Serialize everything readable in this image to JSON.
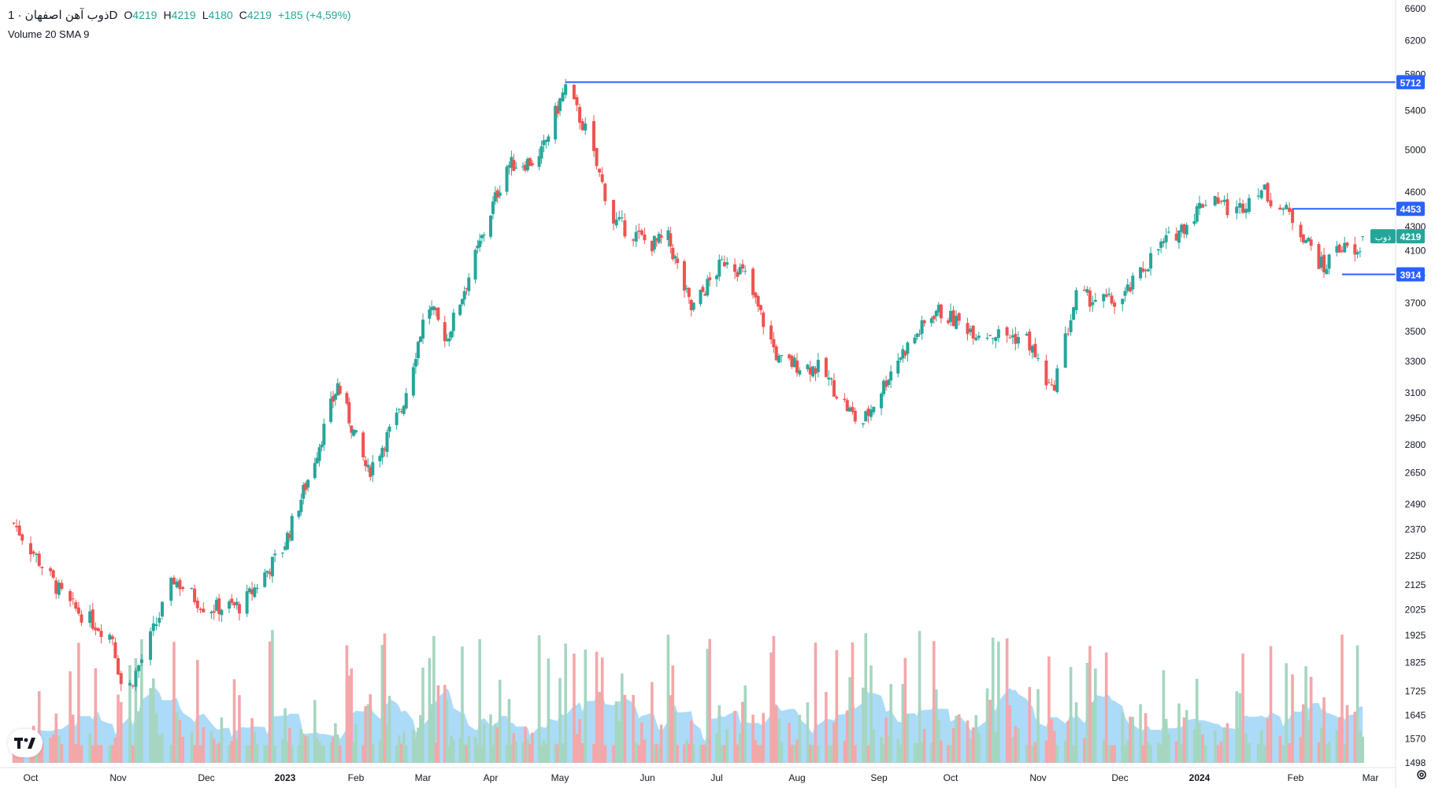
{
  "header": {
    "title": "ذوب آهن اصفهان · 1D",
    "open_label": "O",
    "open": "4219",
    "high_label": "H",
    "high": "4219",
    "low_label": "L",
    "low": "4180",
    "close_label": "C",
    "close": "4219",
    "change": "+185 (+4,59%)",
    "indicator": "Volume 20 SMA 9"
  },
  "colors": {
    "up": "#26a69a",
    "down": "#ef5350",
    "up_volume": "#a5d6c0",
    "down_volume": "#f4a7a9",
    "volume_sma_fill": "#80c8f5",
    "hline": "#2962ff",
    "last_price_bg": "#26a69a"
  },
  "chart_data": {
    "type": "candlestick",
    "x_ticks": [
      "Oct",
      "Nov",
      "Dec",
      "2023",
      "Feb",
      "Mar",
      "Apr",
      "May",
      "Jun",
      "Jul",
      "Aug",
      "Sep",
      "Oct",
      "Nov",
      "Dec",
      "2024",
      "Feb",
      "Mar"
    ],
    "y_ticks": [
      1498,
      1570,
      1645,
      1725,
      1825,
      1925,
      2025,
      2125,
      2250,
      2370,
      2490,
      2650,
      2800,
      2950,
      3100,
      3300,
      3500,
      3700,
      3914,
      4100,
      4300,
      4600,
      5000,
      5400,
      5800,
      6200,
      6600
    ],
    "y_scale": "log",
    "ylim": [
      1498,
      6600
    ],
    "grid": false,
    "price_lines": [
      {
        "label": "5712",
        "value": 5712
      },
      {
        "label": "4453",
        "value": 4453
      },
      {
        "label": "3914",
        "value": 3914
      }
    ],
    "last_price": {
      "label": "4219",
      "value": 4219,
      "symbol": "ذوب"
    },
    "close_path": [
      {
        "x": "Sep 25",
        "y": 2400
      },
      {
        "x": "Oct 14",
        "y": 2050
      },
      {
        "x": "Oct 30",
        "y": 1920
      },
      {
        "x": "Nov 3",
        "y": 1700
      },
      {
        "x": "Nov 10",
        "y": 1860
      },
      {
        "x": "Nov 20",
        "y": 2150
      },
      {
        "x": "Dec 1",
        "y": 2030
      },
      {
        "x": "Dec 15",
        "y": 2040
      },
      {
        "x": "Dec 31",
        "y": 2280
      },
      {
        "x": "Jan 12",
        "y": 2650
      },
      {
        "x": "Jan 24",
        "y": 3150
      },
      {
        "x": "Feb 6",
        "y": 2650
      },
      {
        "x": "Feb 20",
        "y": 3000
      },
      {
        "x": "Mar 3",
        "y": 3700
      },
      {
        "x": "Mar 12",
        "y": 3450
      },
      {
        "x": "Mar 28",
        "y": 4200
      },
      {
        "x": "Apr 8",
        "y": 4850
      },
      {
        "x": "Apr 22",
        "y": 4900
      },
      {
        "x": "May 3",
        "y": 5650
      },
      {
        "x": "May 10",
        "y": 5200
      },
      {
        "x": "May 20",
        "y": 4350
      },
      {
        "x": "Jun 2",
        "y": 4150
      },
      {
        "x": "Jun 10",
        "y": 4200
      },
      {
        "x": "Jun 20",
        "y": 3650
      },
      {
        "x": "Jul 5",
        "y": 4050
      },
      {
        "x": "Jul 12",
        "y": 3900
      },
      {
        "x": "Jul 25",
        "y": 3300
      },
      {
        "x": "Aug 10",
        "y": 3250
      },
      {
        "x": "Aug 25",
        "y": 2900
      },
      {
        "x": "Sep 8",
        "y": 3300
      },
      {
        "x": "Sep 25",
        "y": 3650
      },
      {
        "x": "Oct 10",
        "y": 3500
      },
      {
        "x": "Oct 28",
        "y": 3450
      },
      {
        "x": "Nov 6",
        "y": 3100
      },
      {
        "x": "Nov 15",
        "y": 3750
      },
      {
        "x": "Dec 1",
        "y": 3700
      },
      {
        "x": "Dec 15",
        "y": 4100
      },
      {
        "x": "Dec 28",
        "y": 4350
      },
      {
        "x": "Jan 5",
        "y": 4600
      },
      {
        "x": "Jan 12",
        "y": 4400
      },
      {
        "x": "Jan 20",
        "y": 4650
      },
      {
        "x": "Jan 30",
        "y": 4400
      },
      {
        "x": "Feb 5",
        "y": 4200
      },
      {
        "x": "Feb 12",
        "y": 3950
      },
      {
        "x": "Feb 17",
        "y": 4150
      },
      {
        "x": "Feb 25",
        "y": 4050
      },
      {
        "x": "Feb 27",
        "y": 4219
      }
    ]
  },
  "toolbar": {
    "logo": "tradingview-logo",
    "settings_icon": "gear-icon"
  }
}
